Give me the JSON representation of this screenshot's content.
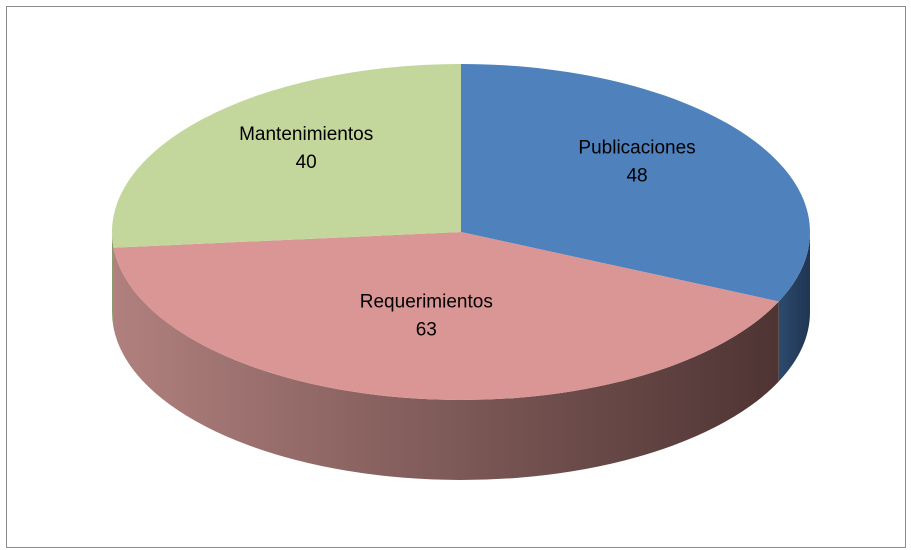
{
  "chart_data": {
    "type": "pie",
    "categories": [
      "Publicaciones",
      "Requerimientos",
      "Mantenimientos"
    ],
    "values": [
      48,
      63,
      40
    ],
    "colors": [
      "#4f81bd",
      "#d99694",
      "#c3d69b"
    ]
  }
}
